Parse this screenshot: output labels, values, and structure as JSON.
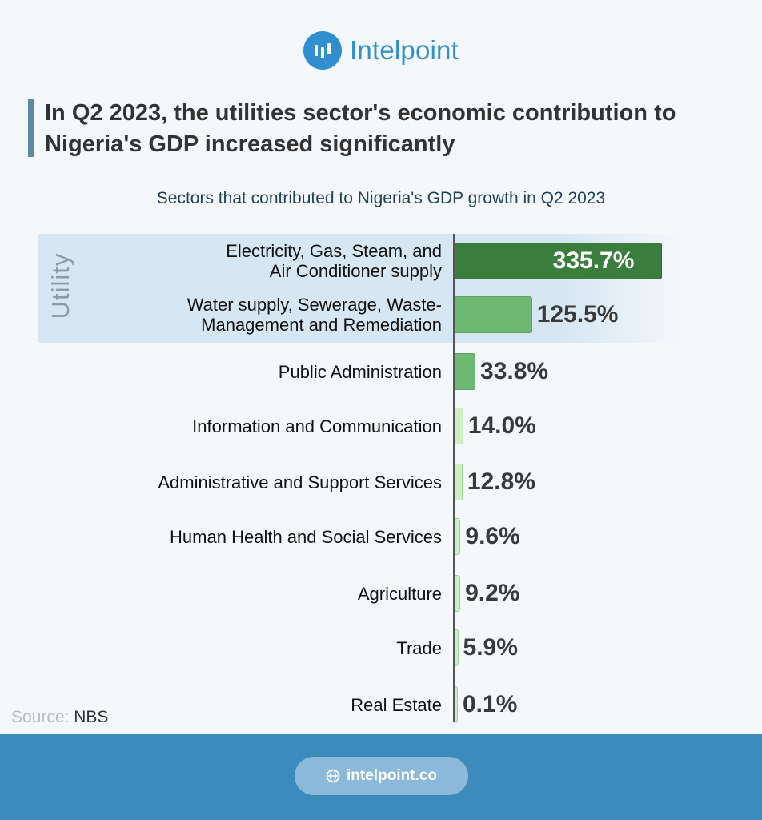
{
  "brand": {
    "name": "Intelpoint",
    "icon": "bar-chart-logo-icon",
    "color": "#2f8fd1"
  },
  "title": "In Q2 2023, the utilities sector's economic contribution to Nigeria's GDP increased significantly",
  "subtitle": "Sectors that contributed to Nigeria's GDP growth in Q2 2023",
  "group_label": "Utility",
  "source": {
    "prefix": "Source:",
    "name": "NBS"
  },
  "footer": {
    "url": "intelpoint.co",
    "icon": "globe-icon"
  },
  "colors": {
    "dark_green": "#3a7d3c",
    "mid_green": "#6db873",
    "light_green": "#cdf0c3",
    "footer_blue": "#3d8bbd"
  },
  "chart_data": {
    "type": "bar",
    "orientation": "horizontal",
    "title": "Sectors that contributed to Nigeria's GDP growth in Q2 2023",
    "categories": [
      "Electricity, Gas, Steam, and\nAir Conditioner supply",
      "Water supply, Sewerage, Waste-\nManagement and Remediation",
      "Public Administration",
      "Information and Communication",
      "Administrative and Support Services",
      "Human Health and Social Services",
      "Agriculture",
      "Trade",
      "Real Estate"
    ],
    "values": [
      335.7,
      125.5,
      33.8,
      14.0,
      12.8,
      9.6,
      9.2,
      5.9,
      0.1
    ],
    "value_labels": [
      "335.7%",
      "125.5%",
      "33.8%",
      "14.0%",
      "12.8%",
      "9.6%",
      "9.2%",
      "5.9%",
      "0.1%"
    ],
    "unit": "%",
    "highlight_group": {
      "label": "Utility",
      "categories": [
        0,
        1
      ]
    },
    "xlim": [
      0,
      340
    ]
  }
}
